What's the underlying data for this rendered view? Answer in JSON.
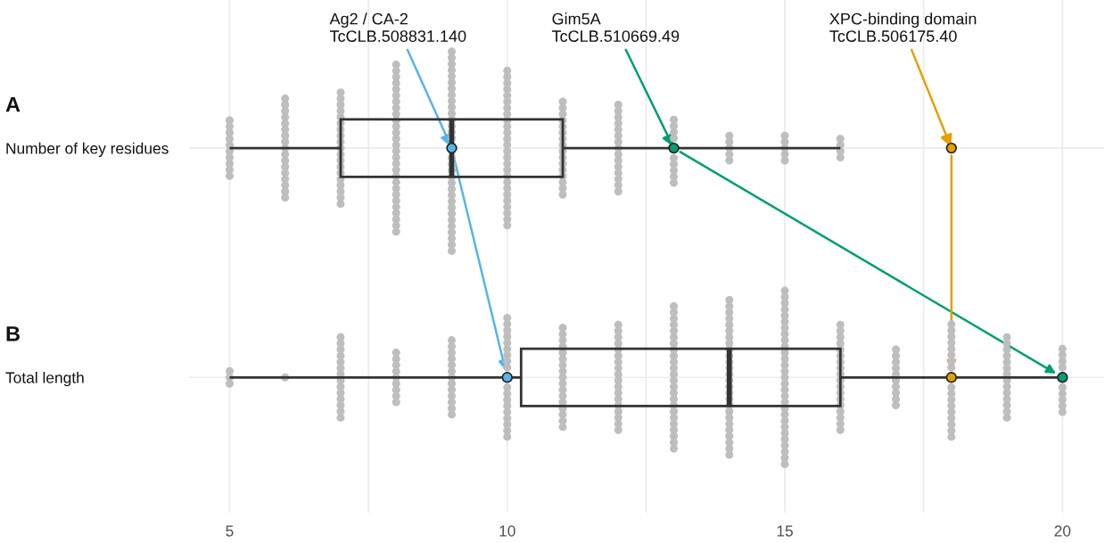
{
  "chart_data": {
    "type": "box",
    "orientation": "horizontal",
    "categories": [
      "Number of key residues",
      "Total length"
    ],
    "boxes": [
      {
        "low": 5,
        "q1": 7,
        "median": 9,
        "q3": 11,
        "high": 16
      },
      {
        "low": 5,
        "q1": 10.25,
        "median": 14,
        "q3": 16,
        "high": 20
      }
    ],
    "xlim": [
      4.27,
      20.75
    ],
    "xticks": [
      5,
      {
        "value": 7.5,
        "label": null
      },
      10,
      {
        "value": 12.5,
        "label": null
      },
      15,
      {
        "value": 17.5,
        "label": null
      },
      20
    ],
    "grid": true,
    "legend": false,
    "annotations": [
      "A",
      "B",
      {
        "text": "Ag2 / CA-2\nTcCLB.508831.140",
        "x": 9,
        "y": "Number of key residues"
      },
      {
        "text": "Gim5A\nTcCLB.510669.49",
        "x": 13,
        "y": "Number of key residues"
      },
      {
        "text": "XPC-binding domain\nTcCLB.506175.40",
        "x": 18,
        "y": "Number of key residues"
      }
    ],
    "series": [
      {
        "type": "scatter",
        "color": "#bebebe",
        "marker": "circle",
        "x": [
          "Number of key residues",
          "Number of key residues",
          "Number of key residues",
          "Number of key residues",
          "Number of key residues",
          "Number of key residues",
          "Number of key residues",
          "Number of key residues",
          "Number of key residues",
          "Number of key residues",
          "Number of key residues",
          "Number of key residues",
          "Number of key residues",
          "Number of key residues",
          "Number of key residues",
          "Number of key residues",
          "Number of key residues",
          "Number of key residues",
          "Number of key residues",
          "Number of key residues",
          "Number of key residues",
          "Number of key residues",
          "Number of key residues",
          "Number of key residues",
          "Number of key residues",
          "Number of key residues",
          "Number of key residues",
          "Number of key residues",
          "Number of key residues",
          "Number of key residues",
          "Number of key residues",
          "Number of key residues",
          "Number of key residues",
          "Number of key residues",
          "Number of key residues",
          "Number of key residues",
          "Number of key residues",
          "Number of key residues",
          "Number of key residues",
          "Number of key residues",
          "Number of key residues",
          "Number of key residues",
          "Number of key residues",
          "Number of key residues",
          "Number of key residues",
          "Number of key residues",
          "Number of key residues",
          "Number of key residues",
          "Number of key residues",
          "Number of key residues",
          "Number of key residues",
          "Number of key residues",
          "Number of key residues",
          "Number of key residues",
          "Number of key residues",
          "Number of key residues",
          "Number of key residues",
          "Number of key residues",
          "Number of key residues",
          "Number of key residues",
          "Number of key residues",
          "Number of key residues",
          "Number of key residues",
          "Number of key residues",
          "Number of key residues",
          "Number of key residues",
          "Number of key residues",
          "Number of key residues",
          "Number of key residues",
          "Number of key residues",
          "Number of key residues",
          "Number of key residues",
          "Number of key residues",
          "Number of key residues",
          "Number of key residues",
          "Number of key residues",
          "Number of key residues",
          "Number of key residues",
          "Number of key residues",
          "Number of key residues",
          "Number of key residues",
          "Number of key residues",
          "Number of key residues",
          "Number of key residues",
          "Number of key residues",
          "Number of key residues",
          "Number of key residues",
          "Number of key residues",
          "Number of key residues",
          "Number of key residues",
          "Number of key residues",
          "Number of key residues",
          "Number of key residues",
          "Number of key residues",
          "Number of key residues",
          "Number of key residues",
          "Number of key residues",
          "Number of key residues",
          "Number of key residues",
          "Number of key residues",
          "Number of key residues",
          "Number of key residues",
          "Number of key residues",
          "Number of key residues",
          "Number of key residues",
          "Number of key residues",
          "Number of key residues",
          "Number of key residues",
          "Number of key residues",
          "Number of key residues",
          "Number of key residues",
          "Number of key residues",
          "Number of key residues",
          "Number of key residues",
          "Number of key residues",
          "Number of key residues",
          "Number of key residues",
          "Number of key residues",
          "Number of key residues",
          "Number of key residues",
          "Number of key residues",
          "Number of key residues",
          "Number of key residues",
          "Number of key residues",
          "Number of key residues",
          "Number of key residues",
          "Number of key residues",
          "Number of key residues",
          "Number of key residues",
          "Number of key residues",
          "Number of key residues",
          "Number of key residues",
          "Number of key residues",
          "Number of key residues",
          "Number of key residues",
          "Number of key residues",
          "Number of key residues",
          "Number of key residues",
          "Number of key residues",
          "Number of key residues",
          "Number of key residues",
          "Number of key residues",
          "Number of key residues",
          "Number of key residues",
          "Number of key residues",
          "Number of key residues",
          "Number of key residues",
          "Number of key residues",
          "Number of key residues",
          "Number of key residues",
          "Number of key residues",
          "Number of key residues",
          "Number of key residues",
          "Number of key residues",
          "Number of key residues",
          "Number of key residues",
          "Number of key residues",
          "Number of key residues",
          "Number of key residues",
          "Number of key residues",
          "Number of key residues",
          "Number of key residues",
          "Number of key residues",
          "Number of key residues",
          "Number of key residues",
          "Number of key residues",
          "Number of key residues",
          "Number of key residues",
          "Number of key residues",
          "Number of key residues",
          "Number of key residues",
          "Number of key residues",
          "Number of key residues",
          "Number of key residues",
          "Number of key residues",
          "Number of key residues",
          "Number of key residues",
          "Number of key residues",
          "Number of key residues",
          "Number of key residues",
          "Number of key residues",
          "Number of key residues",
          "Number of key residues",
          "Number of key residues",
          "Number of key residues"
        ],
        "values": [
          5,
          5,
          5,
          5,
          5,
          5,
          5,
          5,
          5,
          5,
          6,
          6,
          6,
          6,
          6,
          6,
          6,
          6,
          6,
          6,
          6,
          6,
          6,
          6,
          6,
          6,
          6,
          7,
          7,
          7,
          7,
          7,
          7,
          7,
          7,
          7,
          7,
          7,
          7,
          7,
          7,
          7,
          7,
          7,
          7,
          7,
          8,
          8,
          8,
          8,
          8,
          8,
          8,
          8,
          8,
          8,
          8,
          8,
          8,
          8,
          8,
          8,
          8,
          8,
          8,
          8,
          8,
          8,
          8,
          8,
          8,
          8,
          8,
          8,
          9,
          9,
          9,
          9,
          9,
          9,
          9,
          9,
          9,
          9,
          9,
          9,
          9,
          9,
          9,
          9,
          9,
          9,
          9,
          9,
          9,
          9,
          9,
          9,
          9,
          9,
          9,
          9,
          9,
          9,
          9,
          10,
          10,
          10,
          10,
          10,
          10,
          10,
          10,
          10,
          10,
          10,
          10,
          10,
          10,
          10,
          10,
          10,
          10,
          10,
          10,
          10,
          10,
          10,
          10,
          10,
          10,
          11,
          11,
          11,
          11,
          11,
          11,
          11,
          11,
          11,
          11,
          11,
          11,
          11,
          11,
          11,
          11,
          12,
          12,
          12,
          12,
          12,
          12,
          12,
          12,
          12,
          12,
          12,
          12,
          12,
          12,
          12,
          13,
          13,
          13,
          13,
          13,
          13,
          13,
          13,
          13,
          14,
          14,
          14,
          14,
          14,
          15,
          15,
          15,
          15,
          15,
          16,
          16,
          16,
          16
        ]
      },
      {
        "type": "scatter",
        "color": "#bebebe",
        "marker": "circle",
        "x": [
          "Total length",
          "Total length",
          "Total length",
          "Total length",
          "Total length",
          "Total length",
          "Total length",
          "Total length",
          "Total length",
          "Total length",
          "Total length",
          "Total length",
          "Total length",
          "Total length",
          "Total length",
          "Total length",
          "Total length",
          "Total length",
          "Total length",
          "Total length",
          "Total length",
          "Total length",
          "Total length",
          "Total length",
          "Total length",
          "Total length",
          "Total length",
          "Total length",
          "Total length",
          "Total length",
          "Total length",
          "Total length",
          "Total length",
          "Total length",
          "Total length",
          "Total length",
          "Total length",
          "Total length",
          "Total length",
          "Total length",
          "Total length",
          "Total length",
          "Total length",
          "Total length",
          "Total length",
          "Total length",
          "Total length",
          "Total length",
          "Total length",
          "Total length",
          "Total length",
          "Total length",
          "Total length",
          "Total length",
          "Total length",
          "Total length",
          "Total length",
          "Total length",
          "Total length",
          "Total length",
          "Total length",
          "Total length",
          "Total length",
          "Total length",
          "Total length",
          "Total length",
          "Total length",
          "Total length",
          "Total length",
          "Total length",
          "Total length",
          "Total length",
          "Total length",
          "Total length",
          "Total length",
          "Total length",
          "Total length",
          "Total length",
          "Total length",
          "Total length",
          "Total length",
          "Total length",
          "Total length",
          "Total length",
          "Total length",
          "Total length",
          "Total length",
          "Total length",
          "Total length",
          "Total length",
          "Total length",
          "Total length",
          "Total length",
          "Total length",
          "Total length",
          "Total length",
          "Total length",
          "Total length",
          "Total length",
          "Total length",
          "Total length",
          "Total length",
          "Total length",
          "Total length",
          "Total length",
          "Total length",
          "Total length",
          "Total length",
          "Total length",
          "Total length",
          "Total length",
          "Total length",
          "Total length",
          "Total length",
          "Total length",
          "Total length",
          "Total length",
          "Total length",
          "Total length",
          "Total length",
          "Total length",
          "Total length",
          "Total length",
          "Total length",
          "Total length",
          "Total length",
          "Total length",
          "Total length",
          "Total length",
          "Total length",
          "Total length",
          "Total length",
          "Total length",
          "Total length",
          "Total length",
          "Total length",
          "Total length",
          "Total length",
          "Total length",
          "Total length",
          "Total length",
          "Total length",
          "Total length",
          "Total length",
          "Total length",
          "Total length",
          "Total length",
          "Total length",
          "Total length",
          "Total length",
          "Total length",
          "Total length",
          "Total length",
          "Total length",
          "Total length",
          "Total length",
          "Total length",
          "Total length",
          "Total length",
          "Total length",
          "Total length",
          "Total length",
          "Total length",
          "Total length",
          "Total length",
          "Total length",
          "Total length",
          "Total length",
          "Total length",
          "Total length",
          "Total length",
          "Total length",
          "Total length",
          "Total length",
          "Total length",
          "Total length",
          "Total length",
          "Total length",
          "Total length",
          "Total length",
          "Total length",
          "Total length",
          "Total length",
          "Total length",
          "Total length",
          "Total length",
          "Total length",
          "Total length",
          "Total length",
          "Total length",
          "Total length",
          "Total length",
          "Total length",
          "Total length",
          "Total length",
          "Total length",
          "Total length",
          "Total length",
          "Total length",
          "Total length",
          "Total length",
          "Total length",
          "Total length",
          "Total length",
          "Total length",
          "Total length",
          "Total length",
          "Total length",
          "Total length",
          "Total length",
          "Total length",
          "Total length",
          "Total length",
          "Total length",
          "Total length",
          "Total length",
          "Total length",
          "Total length",
          "Total length",
          "Total length",
          "Total length",
          "Total length",
          "Total length",
          "Total length",
          "Total length",
          "Total length",
          "Total length",
          "Total length",
          "Total length",
          "Total length",
          "Total length",
          "Total length",
          "Total length",
          "Total length",
          "Total length",
          "Total length",
          "Total length",
          "Total length",
          "Total length",
          "Total length"
        ],
        "values": [
          5,
          5,
          5,
          6,
          7,
          7,
          7,
          7,
          7,
          7,
          7,
          7,
          7,
          7,
          7,
          7,
          7,
          7,
          8,
          8,
          8,
          8,
          8,
          8,
          8,
          8,
          8,
          9,
          9,
          9,
          9,
          9,
          9,
          9,
          9,
          9,
          9,
          9,
          9,
          9,
          10,
          10,
          10,
          10,
          10,
          10,
          10,
          10,
          10,
          10,
          10,
          10,
          10,
          10,
          10,
          10,
          10,
          10,
          11,
          11,
          11,
          11,
          11,
          11,
          11,
          11,
          11,
          11,
          11,
          11,
          11,
          11,
          11,
          11,
          11,
          12,
          12,
          12,
          12,
          12,
          12,
          12,
          12,
          12,
          12,
          12,
          12,
          12,
          12,
          12,
          12,
          12,
          12,
          13,
          13,
          13,
          13,
          13,
          13,
          13,
          13,
          13,
          13,
          13,
          13,
          13,
          13,
          13,
          13,
          13,
          13,
          13,
          13,
          13,
          13,
          13,
          13,
          14,
          14,
          14,
          14,
          14,
          14,
          14,
          14,
          14,
          14,
          14,
          14,
          14,
          14,
          14,
          14,
          14,
          14,
          14,
          14,
          14,
          14,
          14,
          14,
          14,
          14,
          15,
          15,
          15,
          15,
          15,
          15,
          15,
          15,
          15,
          15,
          15,
          15,
          15,
          15,
          15,
          15,
          15,
          15,
          15,
          15,
          15,
          15,
          15,
          15,
          15,
          15,
          15,
          15,
          15,
          16,
          16,
          16,
          16,
          16,
          16,
          16,
          16,
          16,
          16,
          16,
          16,
          16,
          16,
          16,
          16,
          16,
          16,
          17,
          17,
          17,
          17,
          17,
          17,
          17,
          17,
          17,
          17,
          18,
          18,
          18,
          18,
          18,
          18,
          18,
          18,
          18,
          18,
          18,
          18,
          18,
          18,
          18,
          18,
          18,
          19,
          19,
          19,
          19,
          19,
          19,
          19,
          19,
          19,
          19,
          19,
          19,
          19,
          19,
          20,
          20,
          20,
          20,
          20,
          20,
          20,
          20,
          20
        ]
      },
      {
        "type": "scatter",
        "color": "#56b4e9",
        "marker": "circle",
        "x": [
          "Number of key residues",
          "Total length"
        ],
        "values": [
          9,
          10
        ]
      },
      {
        "type": "scatter",
        "color": "#009e73",
        "marker": "circle",
        "x": [
          "Number of key residues",
          "Total length"
        ],
        "values": [
          13,
          20
        ]
      },
      {
        "type": "scatter",
        "color": "#e69f00",
        "marker": "circle",
        "x": [
          "Number of key residues",
          "Total length"
        ],
        "values": [
          18,
          18
        ]
      }
    ]
  }
}
